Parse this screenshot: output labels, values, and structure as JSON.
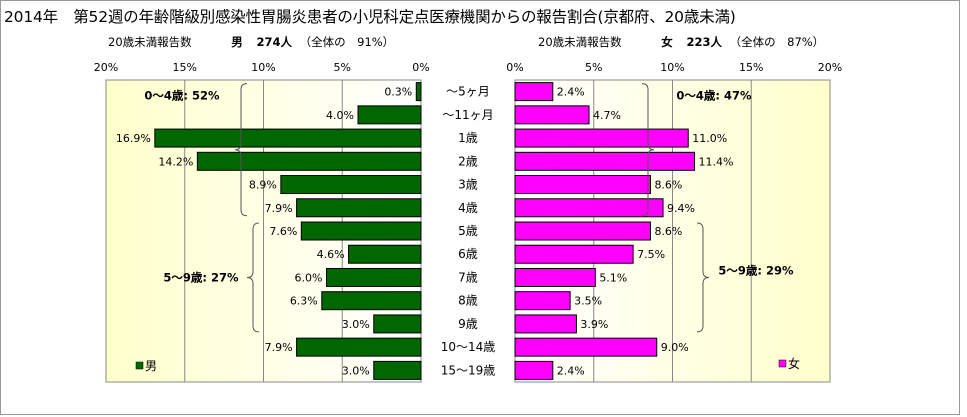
{
  "title": "2014年　第52週の年齢階級別感染性胃腸炎患者の小児科定点医療機関からの報告割合(京都府、20歳未満)",
  "left_header": {
    "label": "20歳未満報告数",
    "sex": "男",
    "count": "274人",
    "share": "（全体の　91%）"
  },
  "right_header": {
    "label": "20歳未満報告数",
    "sex": "女",
    "count": "223人",
    "share": "（全体の　87%）"
  },
  "colors": {
    "male": "#006600",
    "female": "#ff00ff",
    "plot_bg_from": "#ffffff",
    "plot_bg_to": "#ffffcc"
  },
  "chart_data": [
    {
      "type": "bar",
      "orientation": "horizontal",
      "direction": "right-to-left",
      "categories": [
        "～5ヶ月",
        "～11ヶ月",
        "1歳",
        "2歳",
        "3歳",
        "4歳",
        "5歳",
        "6歳",
        "7歳",
        "8歳",
        "9歳",
        "10～14歳",
        "15～19歳"
      ],
      "series": [
        {
          "name": "男",
          "values": [
            0.3,
            4.0,
            16.9,
            14.2,
            8.9,
            7.9,
            7.6,
            4.6,
            6.0,
            6.3,
            3.0,
            7.9,
            3.0
          ]
        }
      ],
      "value_labels": [
        "0.3%",
        "4.0%",
        "16.9%",
        "14.2%",
        "8.9%",
        "7.9%",
        "7.6%",
        "4.6%",
        "6.0%",
        "6.3%",
        "3.0%",
        "7.9%",
        "3.0%"
      ],
      "xlim": [
        0,
        20
      ],
      "xticks": [
        "0%",
        "5%",
        "10%",
        "15%",
        "20%"
      ],
      "grid": true,
      "legend": "bottom-left",
      "annotations": [
        "0～4歳: 52%",
        "5～9歳: 27%"
      ]
    },
    {
      "type": "bar",
      "orientation": "horizontal",
      "direction": "left-to-right",
      "categories": [
        "～5ヶ月",
        "～11ヶ月",
        "1歳",
        "2歳",
        "3歳",
        "4歳",
        "5歳",
        "6歳",
        "7歳",
        "8歳",
        "9歳",
        "10～14歳",
        "15～19歳"
      ],
      "series": [
        {
          "name": "女",
          "values": [
            2.4,
            4.7,
            11.0,
            11.4,
            8.6,
            9.4,
            8.6,
            7.5,
            5.1,
            3.5,
            3.9,
            9.0,
            2.4
          ]
        }
      ],
      "value_labels": [
        "2.4%",
        "4.7%",
        "11.0%",
        "11.4%",
        "8.6%",
        "9.4%",
        "8.6%",
        "7.5%",
        "5.1%",
        "3.5%",
        "3.9%",
        "9.0%",
        "2.4%"
      ],
      "xlim": [
        0,
        20
      ],
      "xticks": [
        "0%",
        "5%",
        "10%",
        "15%",
        "20%"
      ],
      "grid": true,
      "legend": "bottom-right",
      "annotations": [
        "0～4歳: 47%",
        "5～9歳: 29%"
      ]
    }
  ]
}
